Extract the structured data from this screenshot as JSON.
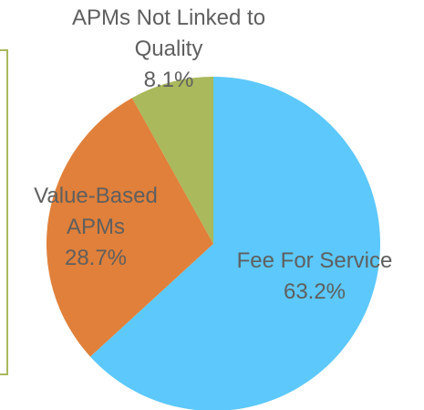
{
  "chart_data": {
    "type": "pie",
    "categories": [
      "Fee For Service",
      "Value-Based APMs",
      "APMs Not Linked to Quality"
    ],
    "values": [
      63.2,
      28.7,
      8.1
    ],
    "value_labels": [
      "63.2%",
      "28.7%",
      "8.1%"
    ],
    "colors": [
      "#5cc8fb",
      "#e0803a",
      "#a9b95b"
    ]
  }
}
